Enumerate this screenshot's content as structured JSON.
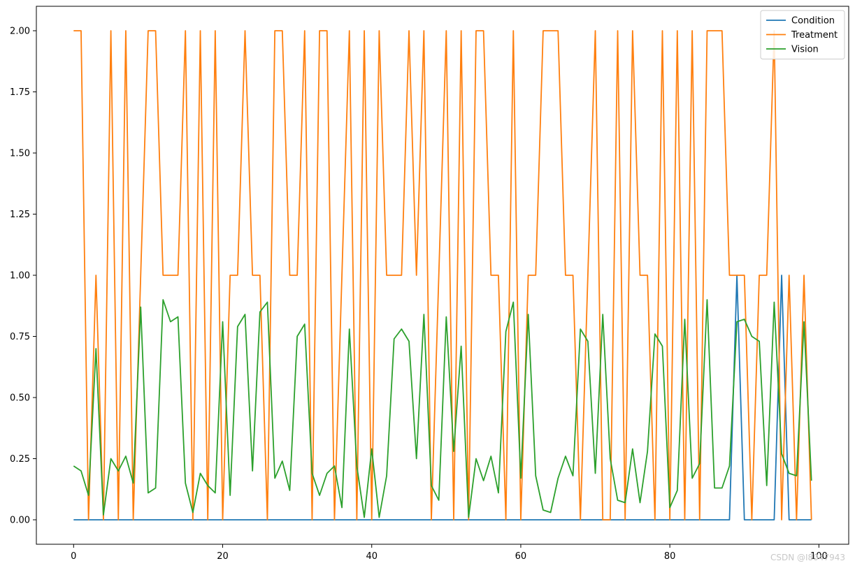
{
  "watermark": "CSDN @I8047943",
  "chart_data": {
    "type": "line",
    "title": "",
    "xlabel": "",
    "ylabel": "",
    "xlim": [
      -5,
      104
    ],
    "ylim": [
      -0.1,
      2.1
    ],
    "xticks": [
      0,
      20,
      40,
      60,
      80,
      100
    ],
    "xtick_labels": [
      "0",
      "20",
      "40",
      "60",
      "80",
      "100"
    ],
    "yticks": [
      0,
      0.25,
      0.5,
      0.75,
      1.0,
      1.25,
      1.5,
      1.75,
      2.0
    ],
    "ytick_labels": [
      "0.00",
      "0.25",
      "0.50",
      "0.75",
      "1.00",
      "1.25",
      "1.50",
      "1.75",
      "2.00"
    ],
    "grid": false,
    "legend_position": "top-right",
    "x": [
      0,
      1,
      2,
      3,
      4,
      5,
      6,
      7,
      8,
      9,
      10,
      11,
      12,
      13,
      14,
      15,
      16,
      17,
      18,
      19,
      20,
      21,
      22,
      23,
      24,
      25,
      26,
      27,
      28,
      29,
      30,
      31,
      32,
      33,
      34,
      35,
      36,
      37,
      38,
      39,
      40,
      41,
      42,
      43,
      44,
      45,
      46,
      47,
      48,
      49,
      50,
      51,
      52,
      53,
      54,
      55,
      56,
      57,
      58,
      59,
      60,
      61,
      62,
      63,
      64,
      65,
      66,
      67,
      68,
      69,
      70,
      71,
      72,
      73,
      74,
      75,
      76,
      77,
      78,
      79,
      80,
      81,
      82,
      83,
      84,
      85,
      86,
      87,
      88,
      89,
      90,
      91,
      92,
      93,
      94,
      95,
      96,
      97,
      98,
      99
    ],
    "series": [
      {
        "name": "Condition",
        "color": "#1f77b4",
        "values": [
          0,
          0,
          0,
          0,
          0,
          0,
          0,
          0,
          0,
          0,
          0,
          0,
          0,
          0,
          0,
          0,
          0,
          0,
          0,
          0,
          0,
          0,
          0,
          0,
          0,
          0,
          0,
          0,
          0,
          0,
          0,
          0,
          0,
          0,
          0,
          0,
          0,
          0,
          0,
          0,
          0,
          0,
          0,
          0,
          0,
          0,
          0,
          0,
          0,
          0,
          0,
          0,
          0,
          0,
          0,
          0,
          0,
          0,
          0,
          0,
          0,
          0,
          0,
          0,
          0,
          0,
          0,
          0,
          0,
          0,
          0,
          0,
          0,
          0,
          0,
          0,
          0,
          0,
          0,
          0,
          0,
          0,
          0,
          0,
          0,
          0,
          0,
          0,
          0,
          1,
          0,
          0,
          0,
          0,
          0,
          1,
          0,
          0,
          0,
          0
        ]
      },
      {
        "name": "Treatment",
        "color": "#ff7f0e",
        "values": [
          2,
          2,
          0,
          1,
          0,
          2,
          0,
          2,
          0,
          1,
          2,
          2,
          1,
          1,
          1,
          2,
          0,
          2,
          0,
          2,
          0,
          1,
          1,
          2,
          1,
          1,
          0,
          2,
          2,
          1,
          1,
          2,
          0,
          2,
          2,
          0,
          1,
          2,
          0,
          2,
          0,
          2,
          1,
          1,
          1,
          2,
          1,
          2,
          0,
          1,
          2,
          0,
          2,
          0,
          2,
          2,
          1,
          1,
          0,
          2,
          0,
          1,
          1,
          2,
          2,
          2,
          1,
          1,
          0,
          1,
          2,
          0,
          0,
          2,
          0,
          2,
          1,
          1,
          0,
          2,
          0,
          2,
          0,
          2,
          0,
          2,
          2,
          2,
          1,
          1,
          1,
          0,
          1,
          1,
          2,
          0,
          1,
          0,
          1,
          0
        ]
      },
      {
        "name": "Vision",
        "color": "#2ca02c",
        "values": [
          0.22,
          0.2,
          0.1,
          0.7,
          0.02,
          0.25,
          0.2,
          0.26,
          0.15,
          0.87,
          0.11,
          0.13,
          0.9,
          0.81,
          0.83,
          0.15,
          0.03,
          0.19,
          0.14,
          0.11,
          0.81,
          0.1,
          0.79,
          0.84,
          0.2,
          0.85,
          0.89,
          0.17,
          0.24,
          0.12,
          0.75,
          0.8,
          0.19,
          0.1,
          0.19,
          0.22,
          0.05,
          0.78,
          0.22,
          0.01,
          0.29,
          0.01,
          0.18,
          0.74,
          0.78,
          0.73,
          0.25,
          0.84,
          0.14,
          0.08,
          0.83,
          0.28,
          0.71,
          0.01,
          0.25,
          0.16,
          0.26,
          0.11,
          0.77,
          0.89,
          0.17,
          0.84,
          0.18,
          0.04,
          0.03,
          0.17,
          0.26,
          0.18,
          0.78,
          0.73,
          0.19,
          0.84,
          0.25,
          0.08,
          0.07,
          0.29,
          0.07,
          0.28,
          0.76,
          0.71,
          0.05,
          0.12,
          0.82,
          0.17,
          0.23,
          0.9,
          0.13,
          0.13,
          0.22,
          0.81,
          0.82,
          0.75,
          0.73,
          0.14,
          0.89,
          0.27,
          0.19,
          0.18,
          0.81,
          0.16
        ]
      }
    ]
  }
}
